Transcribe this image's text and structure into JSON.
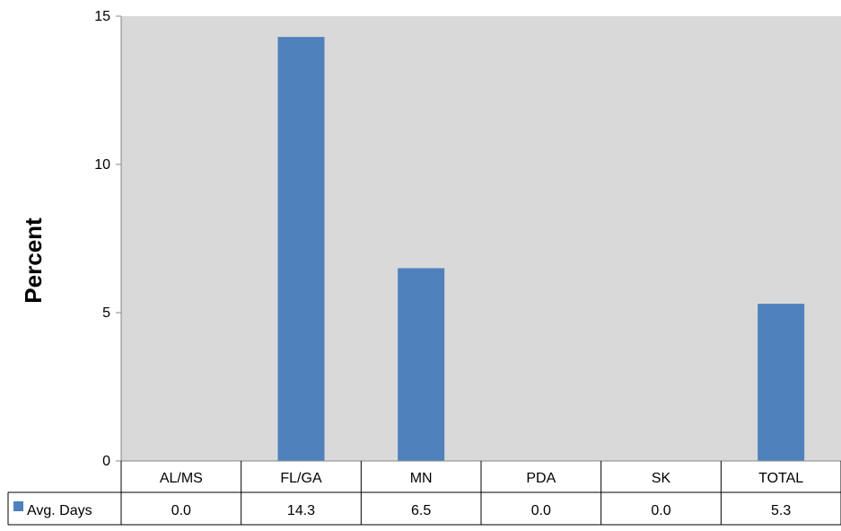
{
  "chart_data": {
    "type": "bar",
    "title": "",
    "xlabel": "",
    "ylabel": "Percent",
    "ylim": [
      0,
      15
    ],
    "yticks": [
      0,
      5,
      10,
      15
    ],
    "grid": false,
    "legend_position": "left of data table",
    "categories": [
      "AL/MS",
      "FL/GA",
      "MN",
      "PDA",
      "SK",
      "TOTAL"
    ],
    "series": [
      {
        "name": "Avg. Days",
        "values": [
          0.0,
          14.3,
          6.5,
          0.0,
          0.0,
          5.3
        ],
        "value_labels": [
          "0.0",
          "14.3",
          "6.5",
          "0.0",
          "0.0",
          "5.3"
        ],
        "color": "#4f81bd"
      }
    ],
    "plot_background": "#d9d9d9",
    "data_table": true
  }
}
